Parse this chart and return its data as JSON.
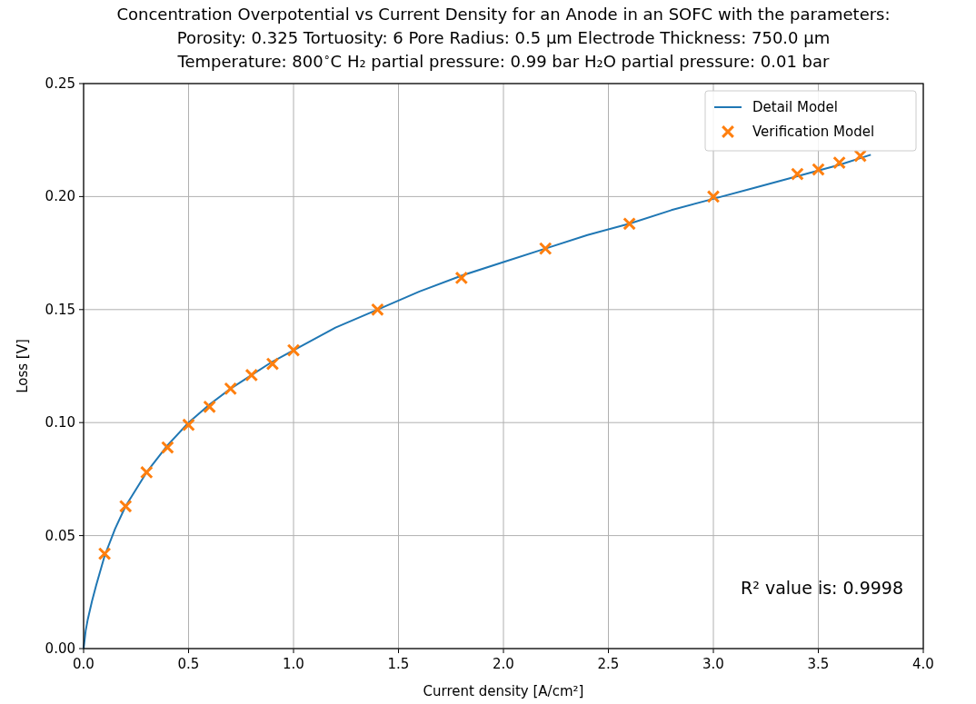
{
  "chart_data": {
    "type": "line",
    "title": "Concentration Overpotential vs Current Density for an Anode in an SOFC with the parameters:\nPorosity: 0.325  Tortuosity: 6  Pore Radius: 0.5 μm  Electrode Thickness: 750.0 μm\nTemperature: 800$^{∘}$C H₂ partial pressure: 0.99 bar  H₂O partial pressure: 0.01 bar",
    "xlabel": "Current density [A/cm²]",
    "ylabel": "Loss [V]",
    "annotations": [
      "R² value is: 0.9998"
    ],
    "series": [
      {
        "name": "Detail Model",
        "color": "#1f77b4",
        "x": [
          0,
          0.01,
          0.02,
          0.04,
          0.06,
          0.1,
          0.15,
          0.2,
          0.3,
          0.4,
          0.5,
          0.6,
          0.7,
          0.8,
          0.9,
          1.0,
          1.2,
          1.4,
          1.6,
          1.8,
          2.0,
          2.2,
          2.4,
          2.6,
          2.8,
          3.0,
          3.2,
          3.4,
          3.6,
          3.75
        ],
        "values": [
          0,
          0.008,
          0.013,
          0.021,
          0.028,
          0.041,
          0.053,
          0.063,
          0.078,
          0.09,
          0.1,
          0.108,
          0.115,
          0.121,
          0.127,
          0.132,
          0.142,
          0.15,
          0.158,
          0.165,
          0.171,
          0.177,
          0.183,
          0.188,
          0.194,
          0.199,
          0.204,
          0.209,
          0.214,
          0.2185
        ]
      },
      {
        "name": "Verification Model",
        "type": "scatter",
        "color": "#ff7f0e",
        "marker": "cross",
        "x": [
          0.1,
          0.2,
          0.3,
          0.4,
          0.5,
          0.6,
          0.7,
          0.8,
          0.9,
          1.0,
          1.4,
          1.8,
          2.2,
          2.6,
          3.0,
          3.4,
          3.5,
          3.6,
          3.7
        ],
        "values": [
          0.042,
          0.063,
          0.078,
          0.089,
          0.099,
          0.107,
          0.115,
          0.121,
          0.126,
          0.132,
          0.15,
          0.164,
          0.177,
          0.188,
          0.2,
          0.21,
          0.212,
          0.215,
          0.218
        ]
      }
    ],
    "xlim": [
      0,
      4
    ],
    "xticks": [
      {
        "value": 0,
        "label": "0.0"
      },
      0.5,
      {
        "value": 1,
        "label": "1.0"
      },
      1.5,
      {
        "value": 2,
        "label": "2.0"
      },
      2.5,
      {
        "value": 3,
        "label": "3.0"
      },
      3.5,
      {
        "value": 4,
        "label": "4.0"
      }
    ],
    "ylim": [
      0,
      0.25
    ],
    "yticks": [
      {
        "value": 0,
        "label": "0.00"
      },
      0.05,
      {
        "value": 0.1,
        "label": "0.10"
      },
      0.15,
      {
        "value": 0.2,
        "label": "0.20"
      },
      0.25
    ],
    "grid": true,
    "legend": "top right"
  }
}
